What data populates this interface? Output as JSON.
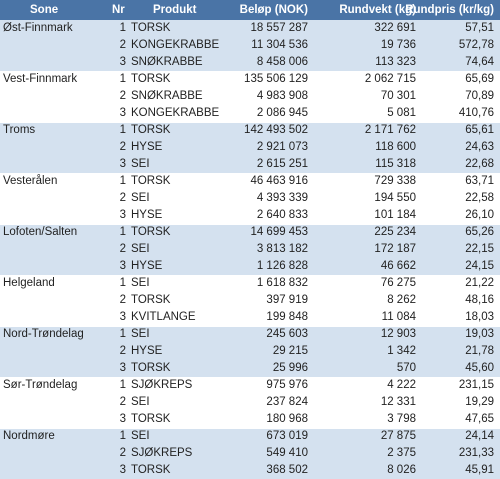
{
  "headers": {
    "sone": "Sone",
    "nr": "Nr",
    "produkt": "Produkt",
    "belop": "Beløp (NOK)",
    "rundvekt": "Rundvekt (kg)",
    "rundpris": "Rundpris (kr/kg)"
  },
  "groups": [
    {
      "zone": "Øst-Finnmark",
      "rows": [
        {
          "nr": "1",
          "product": "TORSK",
          "amount": "18 557 287",
          "weight": "322 691",
          "price": "57,51"
        },
        {
          "nr": "2",
          "product": "KONGEKRABBE",
          "amount": "11 304 536",
          "weight": "19 736",
          "price": "572,78"
        },
        {
          "nr": "3",
          "product": "SNØKRABBE",
          "amount": "8 458 006",
          "weight": "113 323",
          "price": "74,64"
        }
      ]
    },
    {
      "zone": "Vest-Finnmark",
      "rows": [
        {
          "nr": "1",
          "product": "TORSK",
          "amount": "135 506 129",
          "weight": "2 062 715",
          "price": "65,69"
        },
        {
          "nr": "2",
          "product": "SNØKRABBE",
          "amount": "4 983 908",
          "weight": "70 301",
          "price": "70,89"
        },
        {
          "nr": "3",
          "product": "KONGEKRABBE",
          "amount": "2 086 945",
          "weight": "5 081",
          "price": "410,76"
        }
      ]
    },
    {
      "zone": "Troms",
      "rows": [
        {
          "nr": "1",
          "product": "TORSK",
          "amount": "142 493 502",
          "weight": "2 171 762",
          "price": "65,61"
        },
        {
          "nr": "2",
          "product": "HYSE",
          "amount": "2 921 073",
          "weight": "118 600",
          "price": "24,63"
        },
        {
          "nr": "3",
          "product": "SEI",
          "amount": "2 615 251",
          "weight": "115 318",
          "price": "22,68"
        }
      ]
    },
    {
      "zone": "Vesterålen",
      "rows": [
        {
          "nr": "1",
          "product": "TORSK",
          "amount": "46 463 916",
          "weight": "729 338",
          "price": "63,71"
        },
        {
          "nr": "2",
          "product": "SEI",
          "amount": "4 393 339",
          "weight": "194 550",
          "price": "22,58"
        },
        {
          "nr": "3",
          "product": "HYSE",
          "amount": "2 640 833",
          "weight": "101 184",
          "price": "26,10"
        }
      ]
    },
    {
      "zone": "Lofoten/Salten",
      "rows": [
        {
          "nr": "1",
          "product": "TORSK",
          "amount": "14 699 453",
          "weight": "225 234",
          "price": "65,26"
        },
        {
          "nr": "2",
          "product": "SEI",
          "amount": "3 813 182",
          "weight": "172 187",
          "price": "22,15"
        },
        {
          "nr": "3",
          "product": "HYSE",
          "amount": "1 126 828",
          "weight": "46 662",
          "price": "24,15"
        }
      ]
    },
    {
      "zone": "Helgeland",
      "rows": [
        {
          "nr": "1",
          "product": "SEI",
          "amount": "1 618 832",
          "weight": "76 275",
          "price": "21,22"
        },
        {
          "nr": "2",
          "product": "TORSK",
          "amount": "397 919",
          "weight": "8 262",
          "price": "48,16"
        },
        {
          "nr": "3",
          "product": "KVITLANGE",
          "amount": "199 848",
          "weight": "11 084",
          "price": "18,03"
        }
      ]
    },
    {
      "zone": "Nord-Trøndelag",
      "rows": [
        {
          "nr": "1",
          "product": "SEI",
          "amount": "245 603",
          "weight": "12 903",
          "price": "19,03"
        },
        {
          "nr": "2",
          "product": "HYSE",
          "amount": "29 215",
          "weight": "1 342",
          "price": "21,78"
        },
        {
          "nr": "3",
          "product": "TORSK",
          "amount": "25 996",
          "weight": "570",
          "price": "45,60"
        }
      ]
    },
    {
      "zone": "Sør-Trøndelag",
      "rows": [
        {
          "nr": "1",
          "product": "SJØKREPS",
          "amount": "975 976",
          "weight": "4 222",
          "price": "231,15"
        },
        {
          "nr": "2",
          "product": "SEI",
          "amount": "237 824",
          "weight": "12 331",
          "price": "19,29"
        },
        {
          "nr": "3",
          "product": "TORSK",
          "amount": "180 968",
          "weight": "3 798",
          "price": "47,65"
        }
      ]
    },
    {
      "zone": "Nordmøre",
      "rows": [
        {
          "nr": "1",
          "product": "SEI",
          "amount": "673 019",
          "weight": "27 875",
          "price": "24,14"
        },
        {
          "nr": "2",
          "product": "SJØKREPS",
          "amount": "549 410",
          "weight": "2 375",
          "price": "231,33"
        },
        {
          "nr": "3",
          "product": "TORSK",
          "amount": "368 502",
          "weight": "8 026",
          "price": "45,91"
        }
      ]
    }
  ]
}
